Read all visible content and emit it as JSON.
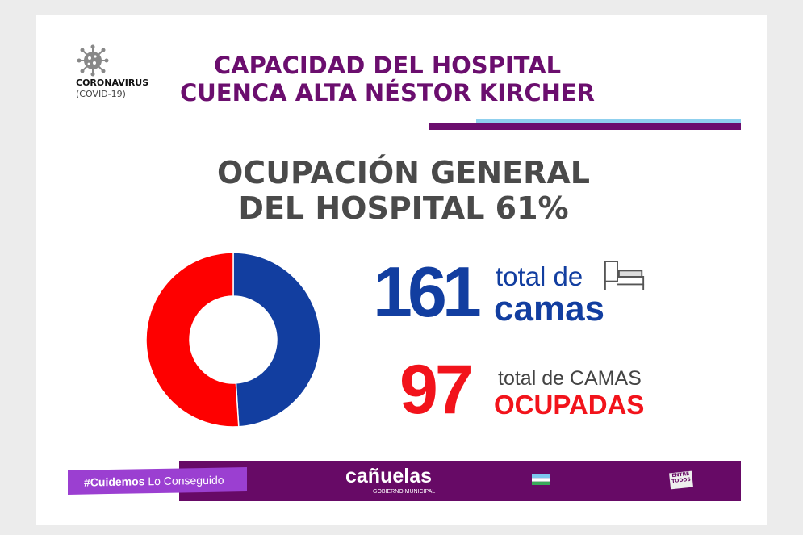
{
  "header": {
    "badge_line1": "CORONAVIRUS",
    "badge_line2": "(COVID-19)",
    "title_line1": "CAPACIDAD DEL HOSPITAL",
    "title_line2": "CUENCA ALTA NÉSTOR KIRCHER"
  },
  "subtitle": {
    "line1": "OCUPACIÓN GENERAL",
    "line2": "DEL HOSPITAL 61%"
  },
  "stats": {
    "total_beds": "161",
    "total_beds_label1": "total de",
    "total_beds_label2": "camas",
    "occupied_beds": "97",
    "occupied_label1": "total de CAMAS",
    "occupied_label2": "OCUPADAS"
  },
  "chart_data": {
    "type": "pie",
    "donut": true,
    "values": [
      49,
      51
    ],
    "colors": [
      "#123ea0",
      "#fe0000"
    ],
    "start": "top",
    "direction": "clockwise"
  },
  "footer": {
    "hashtag": "#Cuidemos",
    "hashtag_rest": "Lo Conseguido",
    "logo": "cañuelas",
    "logo_sub": "GOBIERNO MUNICIPAL",
    "entre_todos": "ENTRE TODOS"
  },
  "colors": {
    "purple": "#6b0e6e",
    "blue": "#123ea0",
    "red": "#f2131b",
    "light_blue": "#8fd0ee"
  },
  "icons": {
    "virus": "virus-icon",
    "bed": "bed-icon",
    "flag": "flag-icon"
  }
}
